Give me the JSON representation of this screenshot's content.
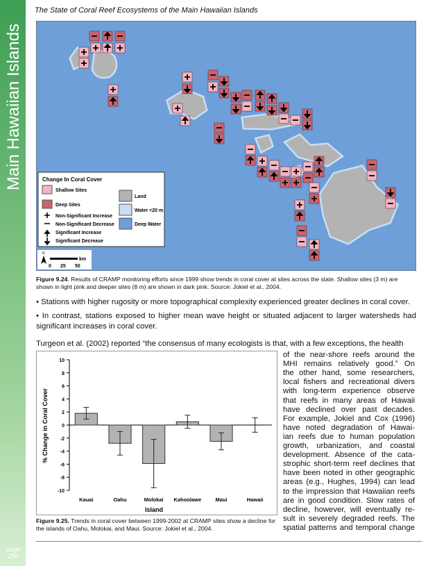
{
  "header": {
    "title": "The State of Coral Reef Ecosystems of the Main Hawaiian Islands",
    "sidebar": "Main Hawaiian Islands",
    "page_label": "page",
    "page_number": "250"
  },
  "map": {
    "legend": {
      "title": "Change In Coral Cover",
      "shallow": "Shallow Sites",
      "deep": "Deep Sites",
      "ns_increase": "Non-Significant Increase",
      "ns_decrease": "Non-Significant Decrease",
      "s_increase": "Significant Increase",
      "s_decrease": "Significant Decrease",
      "land": "Land",
      "shallow_water": "Water <20 m",
      "deep_water": "Deep Water"
    },
    "scale": {
      "north": "N",
      "unit": "km",
      "s0": "0",
      "s1": "25",
      "s2": "50"
    }
  },
  "fig_9_24": {
    "label": "Figure 9.24",
    "text": ". Results of CRAMP monitoring efforts since 1999 show trends in coral cover at sites across the state.  Shallow sites (3 m) are shown in light pink and deeper sites (8 m) are shown in dark pink.  Source: Jokiel et al., 2004."
  },
  "bullets": [
    "• Stations with higher rugosity or more topographical complexity experienced greater declines in coral cover.",
    "• In contrast, stations exposed to higher mean wave height or situated adjacent to larger watersheds had significant increases in coral cover."
  ],
  "paragraph": {
    "first_line": "Turgeon et al. (2002) reported “the consensus of many ecologists is that, with a few exceptions, the health",
    "column_lines": [
      "of the near-shore reefs around the",
      "MHI remains relatively good.”  On",
      "the other hand, some researchers,",
      "local fishers and recreational divers",
      "with long-term experience observe",
      "that reefs in many areas of Hawaii",
      "have declined over past decades.",
      "For example, Jokiel and Cox (1996)",
      "have noted degradation of Hawai-",
      "ian reefs due to human population",
      "growth, urbanization, and coastal",
      "development.  Absence of the cata-",
      "strophic short-term reef declines that",
      "have been noted in other geographic",
      "areas (e.g., Hughes, 1994) can lead",
      "to the impression that Hawaiian reefs",
      "are in good condition.  Slow rates of",
      "decline, however, will eventually re-",
      "sult in severely degraded reefs.  The",
      "spatial patterns and temporal change"
    ]
  },
  "chart_data": {
    "type": "bar",
    "x_label": "Island",
    "y_label": "% Change in Coral Cover",
    "categories": [
      "Kauai",
      "Oahu",
      "Molokai",
      "Kahoolawe",
      "Maui",
      "Hawaii"
    ],
    "values": [
      1.8,
      -2.8,
      -5.9,
      0.5,
      -2.5,
      0
    ],
    "errors": [
      0.9,
      1.8,
      3.7,
      1.0,
      1.3,
      1.1
    ],
    "color": "#b3b3b3",
    "ylim": [
      -10,
      10
    ],
    "yticks": [
      -10,
      -8,
      -6,
      -4,
      -2,
      0,
      2,
      4,
      6,
      8,
      10
    ]
  },
  "fig_9_25": {
    "label": "Figure 9.25.",
    "text": " Trends in coral cover between 1999-2002 at CRAMP sites show a decline for the islands of Oahu, Molokai, and Maui.  Source: Jokiel et al., 2004."
  }
}
